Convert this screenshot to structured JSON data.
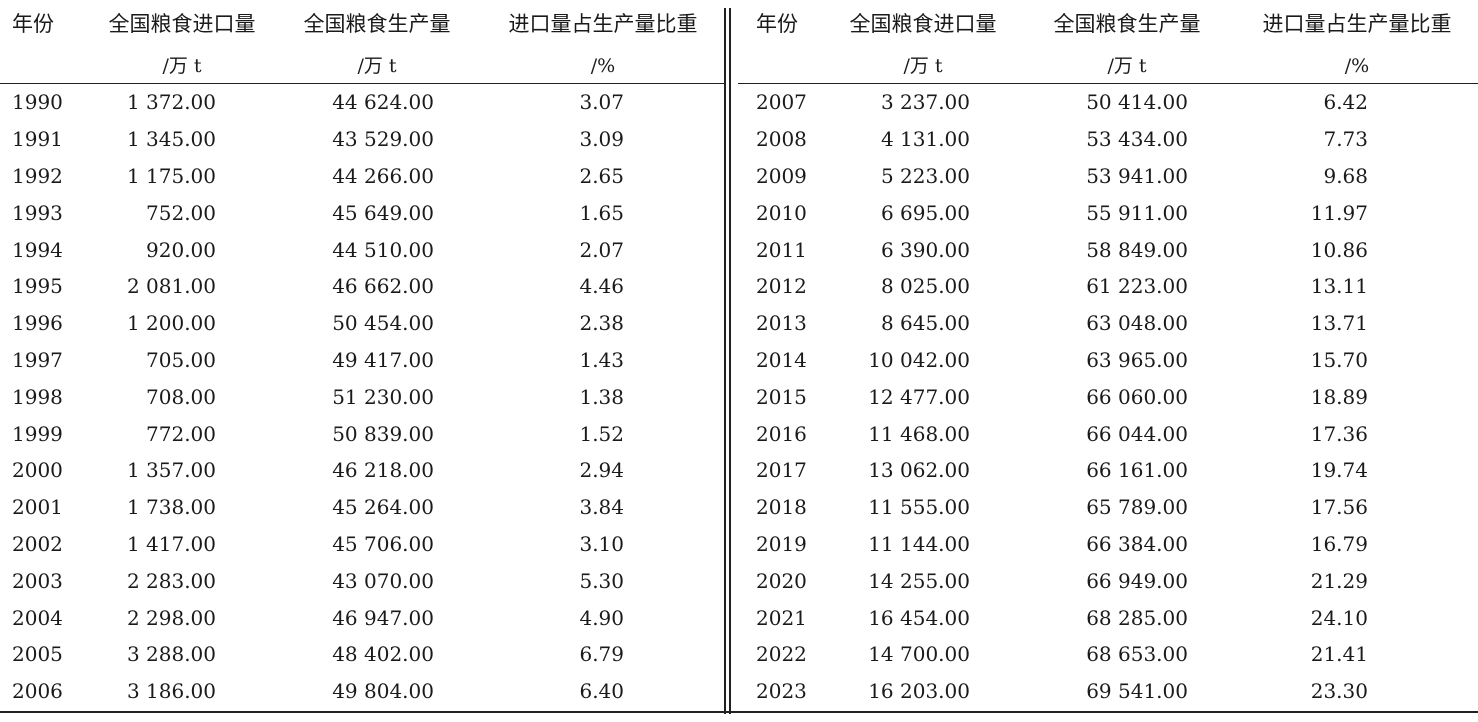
{
  "headers": {
    "year": "年份",
    "import": "全国粮食进口量",
    "import_unit": "/万 t",
    "production": "全国粮食生产量",
    "production_unit": "/万 t",
    "ratio": "进口量占生产量比重",
    "ratio_unit": "/%"
  },
  "left_rows": [
    {
      "year": "1990",
      "import": "1 372.00",
      "production": "44 624.00",
      "ratio": "3.07"
    },
    {
      "year": "1991",
      "import": "1 345.00",
      "production": "43 529.00",
      "ratio": "3.09"
    },
    {
      "year": "1992",
      "import": "1 175.00",
      "production": "44 266.00",
      "ratio": "2.65"
    },
    {
      "year": "1993",
      "import": "752.00",
      "production": "45 649.00",
      "ratio": "1.65"
    },
    {
      "year": "1994",
      "import": "920.00",
      "production": "44 510.00",
      "ratio": "2.07"
    },
    {
      "year": "1995",
      "import": "2 081.00",
      "production": "46 662.00",
      "ratio": "4.46"
    },
    {
      "year": "1996",
      "import": "1 200.00",
      "production": "50 454.00",
      "ratio": "2.38"
    },
    {
      "year": "1997",
      "import": "705.00",
      "production": "49 417.00",
      "ratio": "1.43"
    },
    {
      "year": "1998",
      "import": "708.00",
      "production": "51 230.00",
      "ratio": "1.38"
    },
    {
      "year": "1999",
      "import": "772.00",
      "production": "50 839.00",
      "ratio": "1.52"
    },
    {
      "year": "2000",
      "import": "1 357.00",
      "production": "46 218.00",
      "ratio": "2.94"
    },
    {
      "year": "2001",
      "import": "1 738.00",
      "production": "45 264.00",
      "ratio": "3.84"
    },
    {
      "year": "2002",
      "import": "1 417.00",
      "production": "45 706.00",
      "ratio": "3.10"
    },
    {
      "year": "2003",
      "import": "2 283.00",
      "production": "43 070.00",
      "ratio": "5.30"
    },
    {
      "year": "2004",
      "import": "2 298.00",
      "production": "46 947.00",
      "ratio": "4.90"
    },
    {
      "year": "2005",
      "import": "3 288.00",
      "production": "48 402.00",
      "ratio": "6.79"
    },
    {
      "year": "2006",
      "import": "3 186.00",
      "production": "49 804.00",
      "ratio": "6.40"
    }
  ],
  "right_rows": [
    {
      "year": "2007",
      "import": "3 237.00",
      "production": "50 414.00",
      "ratio": "6.42"
    },
    {
      "year": "2008",
      "import": "4 131.00",
      "production": "53 434.00",
      "ratio": "7.73"
    },
    {
      "year": "2009",
      "import": "5 223.00",
      "production": "53 941.00",
      "ratio": "9.68"
    },
    {
      "year": "2010",
      "import": "6 695.00",
      "production": "55 911.00",
      "ratio": "11.97"
    },
    {
      "year": "2011",
      "import": "6 390.00",
      "production": "58 849.00",
      "ratio": "10.86"
    },
    {
      "year": "2012",
      "import": "8 025.00",
      "production": "61 223.00",
      "ratio": "13.11"
    },
    {
      "year": "2013",
      "import": "8 645.00",
      "production": "63 048.00",
      "ratio": "13.71"
    },
    {
      "year": "2014",
      "import": "10 042.00",
      "production": "63 965.00",
      "ratio": "15.70"
    },
    {
      "year": "2015",
      "import": "12 477.00",
      "production": "66 060.00",
      "ratio": "18.89"
    },
    {
      "year": "2016",
      "import": "11 468.00",
      "production": "66 044.00",
      "ratio": "17.36"
    },
    {
      "year": "2017",
      "import": "13 062.00",
      "production": "66 161.00",
      "ratio": "19.74"
    },
    {
      "year": "2018",
      "import": "11 555.00",
      "production": "65 789.00",
      "ratio": "17.56"
    },
    {
      "year": "2019",
      "import": "11 144.00",
      "production": "66 384.00",
      "ratio": "16.79"
    },
    {
      "year": "2020",
      "import": "14 255.00",
      "production": "66 949.00",
      "ratio": "21.29"
    },
    {
      "year": "2021",
      "import": "16 454.00",
      "production": "68 285.00",
      "ratio": "24.10"
    },
    {
      "year": "2022",
      "import": "14 700.00",
      "production": "68 653.00",
      "ratio": "21.41"
    },
    {
      "year": "2023",
      "import": "16 203.00",
      "production": "69 541.00",
      "ratio": "23.30"
    }
  ]
}
